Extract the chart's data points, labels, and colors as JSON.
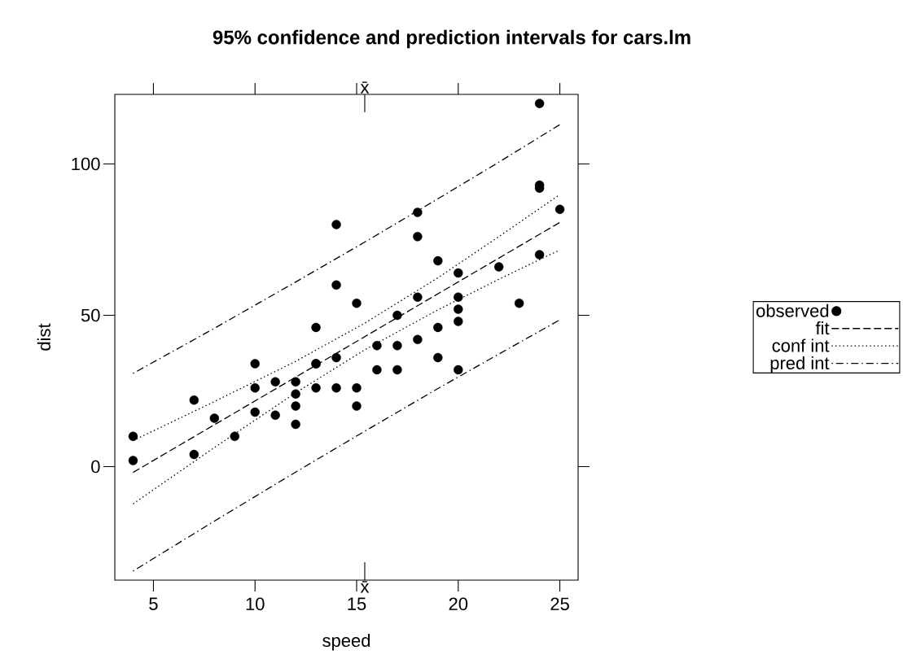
{
  "chart_data": {
    "type": "scatter",
    "title": "95% confidence and prediction intervals for cars.lm",
    "xlabel": "speed",
    "ylabel": "dist",
    "xlim": [
      3.1,
      25.9
    ],
    "ylim": [
      -37.5,
      123
    ],
    "xticks": [
      5,
      10,
      15,
      20,
      25
    ],
    "ref_lines": [
      {
        "axis": "x",
        "value": 15.4,
        "label": "x̄"
      }
    ],
    "yticks": [
      0,
      50,
      100
    ],
    "legend": "right",
    "series": [
      {
        "name": "observed",
        "marker": "circle",
        "color": "#000000",
        "x": [
          4,
          4,
          7,
          7,
          8,
          9,
          10,
          10,
          10,
          11,
          11,
          12,
          12,
          12,
          12,
          13,
          13,
          13,
          13,
          14,
          14,
          14,
          14,
          15,
          15,
          15,
          16,
          16,
          17,
          17,
          17,
          18,
          18,
          18,
          18,
          19,
          19,
          19,
          20,
          20,
          20,
          20,
          20,
          22,
          23,
          24,
          24,
          24,
          24,
          25
        ],
        "values": [
          2,
          10,
          4,
          22,
          16,
          10,
          18,
          26,
          34,
          17,
          28,
          14,
          20,
          24,
          28,
          26,
          34,
          34,
          46,
          26,
          36,
          60,
          80,
          20,
          26,
          54,
          32,
          40,
          32,
          40,
          50,
          42,
          56,
          76,
          84,
          36,
          46,
          68,
          32,
          48,
          52,
          56,
          64,
          66,
          54,
          70,
          92,
          93,
          120,
          85
        ]
      },
      {
        "name": "fit",
        "type": "line",
        "marker": "none",
        "line_style": "dashed",
        "color": "#000000",
        "x": [
          4,
          25
        ],
        "values": [
          -1.9,
          80.7
        ]
      },
      {
        "name": "conf int",
        "type": "line",
        "marker": "none",
        "line_style": "dotted",
        "color": "#000000",
        "x": [
          4,
          8,
          12,
          15.4,
          19,
          22,
          25
        ],
        "values": [
          8.6,
          21.5,
          34.8,
          47.4,
          62.4,
          76.0,
          89.9
        ]
      },
      {
        "type": "line",
        "marker": "none",
        "line_style": "dotted",
        "color": "#000000",
        "x": [
          4,
          8,
          12,
          15.4,
          19,
          22,
          25
        ],
        "values": [
          -12.3,
          6.3,
          24.4,
          38.6,
          51.8,
          61.9,
          71.6
        ]
      },
      {
        "name": "pred int",
        "type": "line",
        "marker": "none",
        "line_style": "dashdot",
        "color": "#000000",
        "x": [
          4,
          8,
          12,
          15.4,
          19,
          22,
          25
        ],
        "values": [
          30.8,
          45.7,
          61.0,
          74.2,
          88.5,
          100.6,
          113.0
        ]
      },
      {
        "type": "line",
        "marker": "none",
        "line_style": "dashdot",
        "color": "#000000",
        "x": [
          4,
          8,
          12,
          15.4,
          19,
          22,
          25
        ],
        "values": [
          -34.5,
          -18.0,
          -1.8,
          11.7,
          25.8,
          37.2,
          48.5
        ]
      }
    ]
  }
}
